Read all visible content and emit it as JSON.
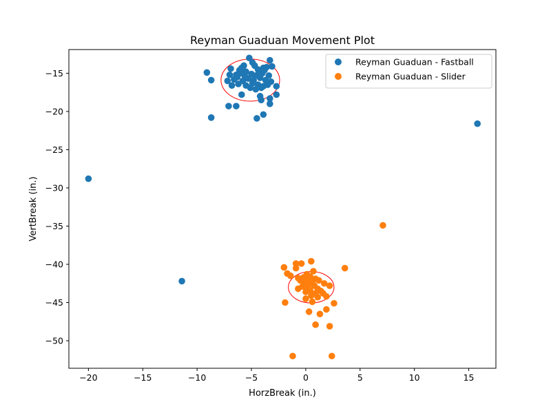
{
  "chart_data": {
    "type": "scatter",
    "title": "Reyman Guaduan Movement Plot",
    "xlabel": "HorzBreak (in.)",
    "ylabel": "VertBreak (in.)",
    "xlim": [
      -21.8,
      17.5
    ],
    "ylim": [
      -53.6,
      -11.9
    ],
    "xticks": [
      -20,
      -15,
      -10,
      -5,
      0,
      5,
      10,
      15
    ],
    "yticks": [
      -15,
      -20,
      -25,
      -30,
      -35,
      -40,
      -45,
      -50
    ],
    "xtick_labels": [
      "−20",
      "−15",
      "−10",
      "−5",
      "0",
      "5",
      "10",
      "15"
    ],
    "ytick_labels": [
      "−15",
      "−20",
      "−25",
      "−30",
      "−35",
      "−40",
      "−45",
      "−50"
    ],
    "grid": false,
    "legend_position": "top-right",
    "series": [
      {
        "name": "Reyman Guaduan - Fastball",
        "color": "#1f77b4",
        "points": [
          [
            -5.2,
            -13.0
          ],
          [
            -3.3,
            -13.3
          ],
          [
            -4.9,
            -13.6
          ],
          [
            -5.7,
            -14.0
          ],
          [
            -3.9,
            -14.3
          ],
          [
            -6.9,
            -14.4
          ],
          [
            -6.1,
            -14.6
          ],
          [
            -5.5,
            -14.8
          ],
          [
            -4.4,
            -14.5
          ],
          [
            -3.6,
            -14.2
          ],
          [
            -3.1,
            -14.1
          ],
          [
            -7.0,
            -15.2
          ],
          [
            -6.3,
            -15.5
          ],
          [
            -5.9,
            -15.0
          ],
          [
            -5.0,
            -15.1
          ],
          [
            -4.6,
            -15.3
          ],
          [
            -4.0,
            -15.0
          ],
          [
            -3.4,
            -15.3
          ],
          [
            -6.6,
            -15.8
          ],
          [
            -5.8,
            -16.0
          ],
          [
            -5.3,
            -15.7
          ],
          [
            -4.8,
            -15.9
          ],
          [
            -4.2,
            -15.6
          ],
          [
            -3.7,
            -15.9
          ],
          [
            -3.2,
            -16.1
          ],
          [
            -7.2,
            -16.0
          ],
          [
            -6.2,
            -16.4
          ],
          [
            -5.5,
            -16.6
          ],
          [
            -4.9,
            -16.3
          ],
          [
            -4.4,
            -16.5
          ],
          [
            -3.9,
            -16.7
          ],
          [
            -6.8,
            -16.6
          ],
          [
            -5.1,
            -16.9
          ],
          [
            -4.6,
            -17.1
          ],
          [
            -4.1,
            -16.9
          ],
          [
            -3.5,
            -16.5
          ],
          [
            -2.7,
            -16.7
          ],
          [
            -6.4,
            -15.2
          ],
          [
            -5.6,
            -15.4
          ],
          [
            -4.3,
            -14.9
          ],
          [
            -3.8,
            -14.6
          ],
          [
            -5.9,
            -14.3
          ],
          [
            -4.7,
            -14.0
          ],
          [
            -9.1,
            -14.9
          ],
          [
            -8.7,
            -15.9
          ],
          [
            -5.9,
            -17.8
          ],
          [
            -4.2,
            -18.0
          ],
          [
            -2.7,
            -17.8
          ],
          [
            -3.3,
            -18.3
          ],
          [
            -4.1,
            -18.5
          ],
          [
            -3.3,
            -19.0
          ],
          [
            -7.1,
            -19.3
          ],
          [
            -6.4,
            -19.3
          ],
          [
            -3.9,
            -20.4
          ],
          [
            -8.7,
            -20.8
          ],
          [
            -4.5,
            -20.9
          ],
          [
            15.8,
            -21.6
          ],
          [
            -20.0,
            -28.8
          ],
          [
            -11.4,
            -42.2
          ]
        ],
        "ellipse": {
          "center": [
            -5.1,
            -15.9
          ],
          "width": 5.4,
          "height": 5.5
        }
      },
      {
        "name": "Reyman Guaduan - Slider",
        "color": "#ff7f0e",
        "points": [
          [
            0.5,
            -39.6
          ],
          [
            -0.9,
            -39.9
          ],
          [
            -0.4,
            -39.9
          ],
          [
            -2.0,
            -40.4
          ],
          [
            -0.9,
            -40.5
          ],
          [
            3.6,
            -40.5
          ],
          [
            0.7,
            -40.9
          ],
          [
            -1.7,
            -41.2
          ],
          [
            -1.4,
            -41.5
          ],
          [
            0.1,
            -41.3
          ],
          [
            -0.7,
            -41.8
          ],
          [
            -0.2,
            -41.7
          ],
          [
            0.4,
            -41.6
          ],
          [
            0.9,
            -41.9
          ],
          [
            -0.5,
            -42.1
          ],
          [
            0.1,
            -42.0
          ],
          [
            0.6,
            -42.2
          ],
          [
            1.2,
            -42.1
          ],
          [
            1.7,
            -42.5
          ],
          [
            -0.1,
            -42.4
          ],
          [
            0.3,
            -42.6
          ],
          [
            0.8,
            -42.8
          ],
          [
            2.2,
            -42.8
          ],
          [
            -0.3,
            -42.9
          ],
          [
            0.2,
            -43.0
          ],
          [
            1.1,
            -43.2
          ],
          [
            -0.7,
            -43.2
          ],
          [
            0.4,
            -43.4
          ],
          [
            1.4,
            -43.5
          ],
          [
            0.0,
            -43.6
          ],
          [
            0.9,
            -43.8
          ],
          [
            1.6,
            -43.8
          ],
          [
            1.9,
            -44.2
          ],
          [
            0.5,
            -44.1
          ],
          [
            1.1,
            -44.3
          ],
          [
            0.0,
            -44.5
          ],
          [
            0.6,
            -44.9
          ],
          [
            2.6,
            -45.1
          ],
          [
            -1.9,
            -45.0
          ],
          [
            1.9,
            -45.9
          ],
          [
            0.3,
            -46.2
          ],
          [
            1.3,
            -46.5
          ],
          [
            0.9,
            -47.9
          ],
          [
            2.2,
            -48.1
          ],
          [
            -1.2,
            -52.0
          ],
          [
            2.4,
            -52.0
          ],
          [
            7.1,
            -34.9
          ]
        ],
        "ellipse": {
          "center": [
            0.5,
            -43.0
          ],
          "width": 4.2,
          "height": 4.1
        }
      }
    ]
  }
}
